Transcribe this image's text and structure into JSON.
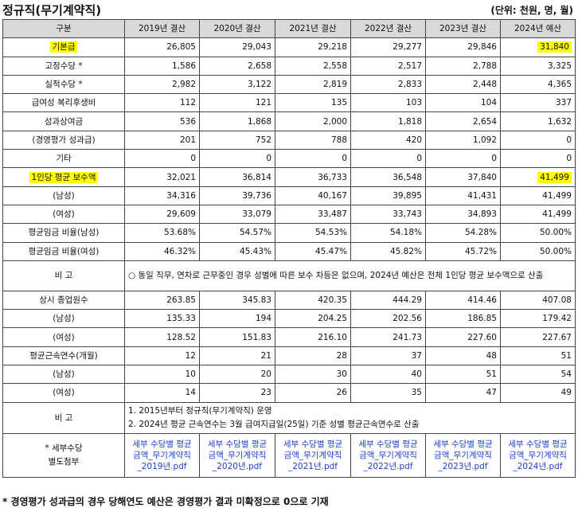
{
  "title": "정규직(무기계약직)",
  "unit": "(단위: 천원, 명, 월)",
  "headers": [
    "구분",
    "2019년 결산",
    "2020년 결산",
    "2021년 결산",
    "2022년 결산",
    "2023년 결산",
    "2024년 예산"
  ],
  "rows": [
    {
      "label": "기본급",
      "values": [
        "26,805",
        "29,043",
        "29,218",
        "29,277",
        "29,846",
        "31,840"
      ]
    },
    {
      "label": "고정수당 *",
      "values": [
        "1,586",
        "2,658",
        "2,558",
        "2,517",
        "2,788",
        "3,325"
      ]
    },
    {
      "label": "실적수당 *",
      "values": [
        "2,982",
        "3,122",
        "2,819",
        "2,833",
        "2,448",
        "4,365"
      ]
    },
    {
      "label": "급여성 복리후생비",
      "values": [
        "112",
        "121",
        "135",
        "103",
        "104",
        "337"
      ]
    },
    {
      "label": "성과상여금",
      "values": [
        "536",
        "1,868",
        "2,000",
        "1,818",
        "2,654",
        "1,632"
      ]
    },
    {
      "label": "(경영평가 성과급)",
      "values": [
        "201",
        "752",
        "788",
        "420",
        "1,092",
        "0"
      ]
    },
    {
      "label": "기타",
      "values": [
        "0",
        "0",
        "0",
        "0",
        "0",
        "0"
      ]
    },
    {
      "label": "1인당 평균 보수액",
      "values": [
        "32,021",
        "36,814",
        "36,733",
        "36,548",
        "37,840",
        "41,499"
      ]
    },
    {
      "label": "(남성)",
      "values": [
        "34,316",
        "39,736",
        "40,167",
        "39,895",
        "41,431",
        "41,499"
      ]
    },
    {
      "label": "(여성)",
      "values": [
        "29,609",
        "33,079",
        "33,487",
        "33,743",
        "34,893",
        "41,499"
      ]
    },
    {
      "label": "평균임금 비율(남성)",
      "values": [
        "53.68%",
        "54.57%",
        "54.53%",
        "54.18%",
        "54.28%",
        "50.00%"
      ]
    },
    {
      "label": "평균임금 비율(여성)",
      "values": [
        "46.32%",
        "45.43%",
        "45.47%",
        "45.82%",
        "45.72%",
        "50.00%"
      ]
    }
  ],
  "note1": {
    "label": "비 고",
    "text": "○ 동일 직무, 연차로 근무중인 경우 성별에 따른 보수 차등은 없으며, 2024년 예산은 전체 1인당 평균 보수액으로 산출"
  },
  "rows2": [
    {
      "label": "상시 종업원수",
      "values": [
        "263.85",
        "345.83",
        "420.35",
        "444.29",
        "414.46",
        "407.08"
      ]
    },
    {
      "label": "(남성)",
      "values": [
        "135.33",
        "194",
        "204.25",
        "202.56",
        "186.85",
        "179.42"
      ]
    },
    {
      "label": "(여성)",
      "values": [
        "128.52",
        "151.83",
        "216.10",
        "241.73",
        "227.60",
        "227.67"
      ]
    },
    {
      "label": "평균근속연수(개월)",
      "values": [
        "12",
        "21",
        "28",
        "37",
        "48",
        "51"
      ]
    },
    {
      "label": "(남성)",
      "values": [
        "10",
        "20",
        "30",
        "40",
        "51",
        "54"
      ]
    },
    {
      "label": "(여성)",
      "values": [
        "14",
        "23",
        "26",
        "35",
        "47",
        "49"
      ]
    }
  ],
  "note2": {
    "label": "비 고",
    "line1": "1. 2015년부터 정규직(무기계약직) 운영",
    "line2": "2. 2024년 평균 근속연수는 3월 급여지급일(25일) 기준 성별 평균근속연수로 산출"
  },
  "attach": {
    "label_line1": "* 세부수당",
    "label_line2": "별도첨부",
    "links": [
      [
        "세부 수당별 평균",
        "금액_무기계약직",
        "_2019년.pdf"
      ],
      [
        "세부 수당별 평균",
        "금액_무기계약직",
        "_2020년.pdf"
      ],
      [
        "세부 수당별 평균",
        "금액_무기계약직",
        "_2021년.pdf"
      ],
      [
        "세부 수당별 평균",
        "금액_무기계약직",
        "_2022년.pdf"
      ],
      [
        "세부 수당별 평균",
        "금액_무기계약직",
        "_2023년.pdf"
      ],
      [
        "세부 수당별 평균",
        "금액_무기계약직",
        "_2024년.pdf"
      ]
    ]
  },
  "footer": "* 경영평가 성과급의 경우 당해연도 예산은 경영평가 결과 미확정으로 0으로 기재",
  "highlight_color": "#ffff00",
  "link_color": "#1a3fd6",
  "header_bg": "#d9d9d9"
}
